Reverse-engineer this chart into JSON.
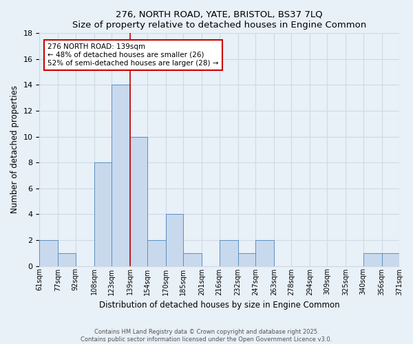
{
  "title": "276, NORTH ROAD, YATE, BRISTOL, BS37 7LQ",
  "subtitle": "Size of property relative to detached houses in Engine Common",
  "xlabel": "Distribution of detached houses by size in Engine Common",
  "ylabel": "Number of detached properties",
  "bin_edges": [
    61,
    77,
    92,
    108,
    123,
    139,
    154,
    170,
    185,
    201,
    216,
    232,
    247,
    263,
    278,
    294,
    309,
    325,
    340,
    356,
    371
  ],
  "counts": [
    2,
    1,
    0,
    8,
    14,
    10,
    2,
    4,
    1,
    0,
    2,
    1,
    2,
    0,
    0,
    0,
    0,
    0,
    1,
    1
  ],
  "bar_color": "#c9d9ed",
  "bar_edge_color": "#5b8fc0",
  "grid_color": "#d0d8e4",
  "bg_color": "#e8f0f8",
  "red_line_x": 139,
  "ylim": [
    0,
    18
  ],
  "yticks": [
    0,
    2,
    4,
    6,
    8,
    10,
    12,
    14,
    16,
    18
  ],
  "annotation_text": "276 NORTH ROAD: 139sqm\n← 48% of detached houses are smaller (26)\n52% of semi-detached houses are larger (28) →",
  "annotation_box_color": "#ffffff",
  "annotation_box_edge": "#cc0000",
  "footnote1": "Contains HM Land Registry data © Crown copyright and database right 2025.",
  "footnote2": "Contains public sector information licensed under the Open Government Licence v3.0."
}
